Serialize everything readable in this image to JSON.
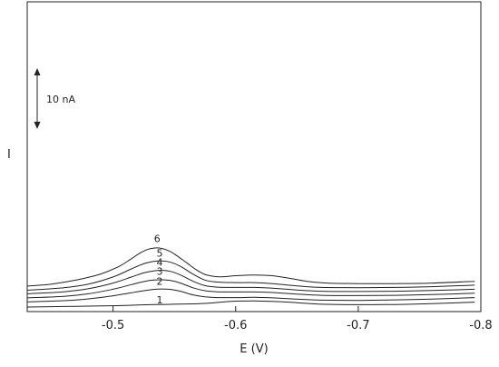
{
  "chart_data": {
    "type": "line",
    "xlabel": "E (V)",
    "ylabel": "I",
    "xlim": [
      -0.43,
      -0.8
    ],
    "ylim": [
      0,
      20
    ],
    "x_ticks": [
      -0.5,
      -0.6,
      -0.7,
      -0.8
    ],
    "x_tick_labels": [
      "-0.5",
      "-0.6",
      "-0.7",
      "-0.8"
    ],
    "scale_bar": {
      "label": "10 nA",
      "value": 10
    },
    "grid": false,
    "legend": "none",
    "series": [
      {
        "name": "1",
        "label_at": [
          -0.538,
          1.6
        ],
        "points": [
          [
            -0.43,
            0.9
          ],
          [
            -0.46,
            1.0
          ],
          [
            -0.49,
            1.1
          ],
          [
            -0.51,
            1.2
          ],
          [
            -0.52,
            1.3
          ],
          [
            -0.53,
            1.35
          ],
          [
            -0.54,
            1.4
          ],
          [
            -0.55,
            1.45
          ],
          [
            -0.56,
            1.5
          ],
          [
            -0.575,
            1.6
          ],
          [
            -0.59,
            1.9
          ],
          [
            -0.6,
            2.05
          ],
          [
            -0.615,
            2.1
          ],
          [
            -0.63,
            2.0
          ],
          [
            -0.65,
            1.75
          ],
          [
            -0.67,
            1.45
          ],
          [
            -0.7,
            1.35
          ],
          [
            -0.73,
            1.4
          ],
          [
            -0.76,
            1.55
          ],
          [
            -0.795,
            1.85
          ]
        ]
      },
      {
        "name": "2",
        "label_at": [
          -0.538,
          5.3
        ],
        "points": [
          [
            -0.43,
            1.9
          ],
          [
            -0.46,
            2.15
          ],
          [
            -0.48,
            2.5
          ],
          [
            -0.5,
            3.1
          ],
          [
            -0.515,
            3.7
          ],
          [
            -0.525,
            4.1
          ],
          [
            -0.533,
            4.35
          ],
          [
            -0.54,
            4.45
          ],
          [
            -0.547,
            4.35
          ],
          [
            -0.555,
            4.0
          ],
          [
            -0.565,
            3.3
          ],
          [
            -0.575,
            2.9
          ],
          [
            -0.585,
            2.75
          ],
          [
            -0.6,
            2.75
          ],
          [
            -0.615,
            2.8
          ],
          [
            -0.63,
            2.7
          ],
          [
            -0.65,
            2.45
          ],
          [
            -0.67,
            2.25
          ],
          [
            -0.7,
            2.2
          ],
          [
            -0.73,
            2.3
          ],
          [
            -0.76,
            2.45
          ],
          [
            -0.795,
            2.75
          ]
        ]
      },
      {
        "name": "3",
        "label_at": [
          -0.538,
          7.2
        ],
        "points": [
          [
            -0.43,
            2.7
          ],
          [
            -0.46,
            3.0
          ],
          [
            -0.48,
            3.5
          ],
          [
            -0.5,
            4.4
          ],
          [
            -0.515,
            5.3
          ],
          [
            -0.525,
            5.9
          ],
          [
            -0.533,
            6.2
          ],
          [
            -0.54,
            6.25
          ],
          [
            -0.547,
            6.1
          ],
          [
            -0.555,
            5.6
          ],
          [
            -0.565,
            4.7
          ],
          [
            -0.575,
            4.1
          ],
          [
            -0.585,
            3.9
          ],
          [
            -0.6,
            3.85
          ],
          [
            -0.615,
            3.85
          ],
          [
            -0.63,
            3.75
          ],
          [
            -0.65,
            3.45
          ],
          [
            -0.67,
            3.2
          ],
          [
            -0.7,
            3.15
          ],
          [
            -0.73,
            3.2
          ],
          [
            -0.76,
            3.35
          ],
          [
            -0.795,
            3.6
          ]
        ]
      },
      {
        "name": "4",
        "label_at": [
          -0.538,
          9.0
        ],
        "points": [
          [
            -0.43,
            3.5
          ],
          [
            -0.46,
            3.9
          ],
          [
            -0.48,
            4.5
          ],
          [
            -0.5,
            5.6
          ],
          [
            -0.515,
            6.8
          ],
          [
            -0.525,
            7.6
          ],
          [
            -0.533,
            8.0
          ],
          [
            -0.54,
            8.1
          ],
          [
            -0.547,
            7.9
          ],
          [
            -0.555,
            7.2
          ],
          [
            -0.565,
            6.0
          ],
          [
            -0.575,
            5.1
          ],
          [
            -0.585,
            4.8
          ],
          [
            -0.6,
            4.75
          ],
          [
            -0.615,
            4.75
          ],
          [
            -0.63,
            4.6
          ],
          [
            -0.65,
            4.25
          ],
          [
            -0.67,
            4.0
          ],
          [
            -0.7,
            3.95
          ],
          [
            -0.73,
            4.0
          ],
          [
            -0.76,
            4.15
          ],
          [
            -0.795,
            4.4
          ]
        ]
      },
      {
        "name": "5",
        "label_at": [
          -0.538,
          10.8
        ],
        "points": [
          [
            -0.43,
            4.2
          ],
          [
            -0.46,
            4.7
          ],
          [
            -0.48,
            5.4
          ],
          [
            -0.5,
            6.8
          ],
          [
            -0.515,
            8.4
          ],
          [
            -0.525,
            9.4
          ],
          [
            -0.533,
            9.85
          ],
          [
            -0.54,
            9.95
          ],
          [
            -0.547,
            9.7
          ],
          [
            -0.555,
            8.9
          ],
          [
            -0.565,
            7.4
          ],
          [
            -0.575,
            6.2
          ],
          [
            -0.585,
            5.8
          ],
          [
            -0.6,
            5.7
          ],
          [
            -0.615,
            5.7
          ],
          [
            -0.63,
            5.5
          ],
          [
            -0.65,
            5.05
          ],
          [
            -0.67,
            4.75
          ],
          [
            -0.7,
            4.7
          ],
          [
            -0.73,
            4.75
          ],
          [
            -0.76,
            4.9
          ],
          [
            -0.795,
            5.2
          ]
        ]
      },
      {
        "name": "6",
        "label_at": [
          -0.536,
          13.7
        ],
        "points": [
          [
            -0.43,
            5.0
          ],
          [
            -0.45,
            5.4
          ],
          [
            -0.47,
            6.2
          ],
          [
            -0.49,
            7.4
          ],
          [
            -0.505,
            8.9
          ],
          [
            -0.515,
            10.4
          ],
          [
            -0.522,
            11.5
          ],
          [
            -0.528,
            12.2
          ],
          [
            -0.534,
            12.5
          ],
          [
            -0.54,
            12.4
          ],
          [
            -0.546,
            11.9
          ],
          [
            -0.552,
            11.0
          ],
          [
            -0.56,
            9.6
          ],
          [
            -0.568,
            8.2
          ],
          [
            -0.575,
            7.3
          ],
          [
            -0.583,
            6.9
          ],
          [
            -0.59,
            6.85
          ],
          [
            -0.6,
            7.05
          ],
          [
            -0.615,
            7.2
          ],
          [
            -0.63,
            7.05
          ],
          [
            -0.645,
            6.5
          ],
          [
            -0.66,
            5.9
          ],
          [
            -0.675,
            5.6
          ],
          [
            -0.7,
            5.5
          ],
          [
            -0.73,
            5.5
          ],
          [
            -0.76,
            5.6
          ],
          [
            -0.795,
            5.95
          ]
        ]
      }
    ]
  }
}
